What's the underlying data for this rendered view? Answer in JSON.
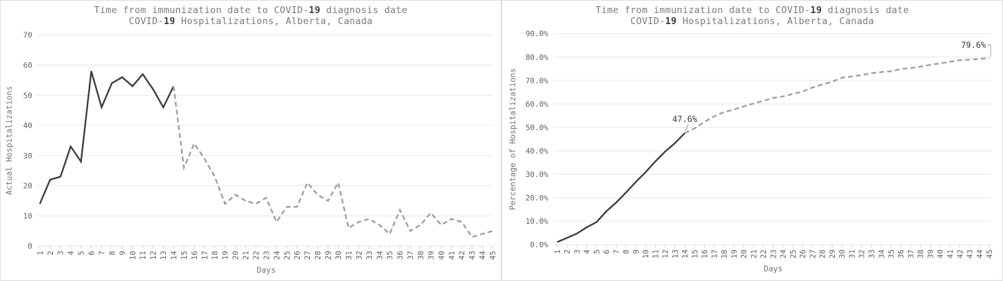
{
  "colors": {
    "background": "#ffffff",
    "panel_border": "#dadce0",
    "gridline": "#e6e6e6",
    "axis_tick": "#cccccc",
    "solid_line": "#3d3d3d",
    "dashed_line": "#9e9e9e",
    "title_text": "#7a7a7a",
    "title_number": "#3d3d3d",
    "tick_label": "#616161",
    "annotation": "#3c3c3c"
  },
  "chart_data": [
    {
      "type": "line",
      "title": {
        "line1": [
          "Time from immunization date to COVID-",
          "19",
          " diagnosis date"
        ],
        "line2": [
          "COVID-",
          "19",
          " Hospitalizations, Alberta, Canada"
        ]
      },
      "xlabel": "Days",
      "ylabel": "Actual Hospitalizations",
      "ylim": [
        0,
        70
      ],
      "ytick_step": 10,
      "ytick_labels": [
        "0",
        "10",
        "20",
        "30",
        "40",
        "50",
        "60",
        "70"
      ],
      "grid": "horizontal",
      "legend_position": "none",
      "solid_through_day": 14,
      "line_style_note": "solid days 1-14, dashed days 14-45",
      "days": [
        1,
        2,
        3,
        4,
        5,
        6,
        7,
        8,
        9,
        10,
        11,
        12,
        13,
        14,
        15,
        16,
        17,
        18,
        19,
        20,
        21,
        22,
        23,
        24,
        25,
        26,
        27,
        28,
        29,
        30,
        31,
        32,
        33,
        34,
        35,
        36,
        37,
        38,
        39,
        40,
        41,
        42,
        43,
        44,
        45
      ],
      "values": [
        14,
        22,
        23,
        33,
        28,
        58,
        46,
        54,
        56,
        53,
        57,
        52,
        46,
        53,
        26,
        34,
        29,
        23,
        14,
        17,
        15,
        14,
        16,
        8,
        13,
        13,
        21,
        17,
        15,
        21,
        6,
        8,
        9,
        7,
        4,
        12,
        5,
        7,
        11,
        7,
        9,
        8,
        3,
        4,
        5
      ],
      "annotations": []
    },
    {
      "type": "line",
      "title": {
        "line1": [
          "Time from immunization date to COVID-",
          "19",
          " diagnosis date"
        ],
        "line2": [
          "COVID-",
          "19",
          " Hospitalizations, Alberta, Canada"
        ]
      },
      "xlabel": "Days",
      "ylabel": "Percentage of Hospitalizations",
      "ylim": [
        0,
        90
      ],
      "ytick_step": 10,
      "ytick_labels": [
        "0.0%",
        "10.0%",
        "20.0%",
        "30.0%",
        "40.0%",
        "50.0%",
        "60.0%",
        "70.0%",
        "80.0%",
        "90.0%"
      ],
      "grid": "horizontal",
      "legend_position": "none",
      "solid_through_day": 14,
      "line_style_note": "solid days 1-14, dashed days 14-45",
      "days": [
        1,
        2,
        3,
        4,
        5,
        6,
        7,
        8,
        9,
        10,
        11,
        12,
        13,
        14,
        15,
        16,
        17,
        18,
        19,
        20,
        21,
        22,
        23,
        24,
        25,
        26,
        27,
        28,
        29,
        30,
        31,
        32,
        33,
        34,
        35,
        36,
        37,
        38,
        39,
        40,
        41,
        42,
        43,
        44,
        45
      ],
      "values": [
        1.1,
        2.9,
        4.7,
        7.4,
        9.6,
        14.2,
        17.9,
        22.2,
        26.7,
        30.9,
        35.5,
        39.7,
        43.3,
        47.6,
        49.6,
        52.4,
        54.7,
        56.5,
        57.6,
        59.0,
        60.2,
        61.3,
        62.6,
        63.2,
        64.3,
        65.3,
        67.0,
        68.3,
        69.5,
        71.2,
        71.7,
        72.3,
        73.1,
        73.6,
        73.9,
        74.9,
        75.3,
        75.9,
        76.7,
        77.3,
        78.0,
        78.7,
        78.9,
        79.2,
        79.6
      ],
      "annotations": [
        {
          "text": "47.6%",
          "day": 14,
          "value": 47.6
        },
        {
          "text": "79.6%",
          "day": 45,
          "value": 79.6
        }
      ]
    }
  ]
}
